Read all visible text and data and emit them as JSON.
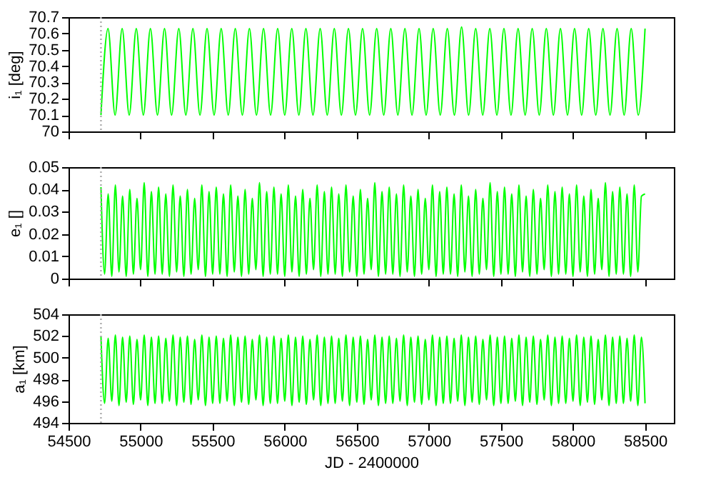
{
  "chart_data": [
    {
      "type": "line",
      "ylabel": "i₁ [deg]",
      "color": "#00ff00",
      "xlim": [
        54500,
        58700
      ],
      "xticks": [
        54500,
        55000,
        55500,
        56000,
        56500,
        57000,
        57500,
        58000,
        58500
      ],
      "ylim": [
        70,
        70.7
      ],
      "yticks": [
        70,
        70.1,
        70.2,
        70.3,
        70.4,
        70.5,
        70.6,
        70.7
      ],
      "tick_labels": "y",
      "ref_lines": [
        {
          "axis": "x",
          "value": 54725,
          "color": "#aaaaaa",
          "line_style": "dotted"
        }
      ],
      "x": [
        54725,
        54774,
        54823,
        54872,
        54921,
        54970,
        55019,
        55068,
        55117,
        55166,
        55215,
        55265,
        55314,
        55363,
        55412,
        55461,
        55510,
        55559,
        55608,
        55657,
        55706,
        55755,
        55804,
        55853,
        55902,
        55951,
        56000,
        56049,
        56098,
        56147,
        56196,
        56246,
        56295,
        56344,
        56393,
        56442,
        56491,
        56540,
        56589,
        56638,
        56687,
        56736,
        56785,
        56834,
        56883,
        56932,
        56981,
        57030,
        57079,
        57128,
        57177,
        57227,
        57276,
        57325,
        57374,
        57423,
        57472,
        57521,
        57570,
        57619,
        57668,
        57717,
        57766,
        57815,
        57864,
        57913,
        57962,
        58011,
        58060,
        58109,
        58158,
        58208,
        58257,
        58306,
        58355,
        58404,
        58453,
        58500
      ],
      "values": [
        70.1,
        70.63,
        70.1,
        70.63,
        70.1,
        70.63,
        70.1,
        70.63,
        70.1,
        70.63,
        70.1,
        70.63,
        70.1,
        70.63,
        70.1,
        70.63,
        70.1,
        70.63,
        70.1,
        70.63,
        70.1,
        70.63,
        70.1,
        70.63,
        70.1,
        70.63,
        70.1,
        70.63,
        70.1,
        70.63,
        70.1,
        70.63,
        70.1,
        70.63,
        70.1,
        70.63,
        70.1,
        70.63,
        70.1,
        70.63,
        70.1,
        70.63,
        70.1,
        70.63,
        70.1,
        70.63,
        70.1,
        70.63,
        70.1,
        70.63,
        70.1,
        70.64,
        70.1,
        70.63,
        70.1,
        70.63,
        70.1,
        70.63,
        70.1,
        70.63,
        70.1,
        70.63,
        70.1,
        70.63,
        70.1,
        70.63,
        70.1,
        70.63,
        70.1,
        70.63,
        70.1,
        70.63,
        70.1,
        70.63,
        70.1,
        70.63,
        70.1,
        70.63
      ]
    },
    {
      "type": "line",
      "ylabel": "e₁ []",
      "color": "#00ff00",
      "xlim": [
        54500,
        58700
      ],
      "xticks": [
        54500,
        55000,
        55500,
        56000,
        56500,
        57000,
        57500,
        58000,
        58500
      ],
      "ylim": [
        0,
        0.05
      ],
      "yticks": [
        0,
        0.01,
        0.02,
        0.03,
        0.04,
        0.05
      ],
      "tick_labels": "y",
      "ref_lines": [
        {
          "axis": "x",
          "value": 54725,
          "color": "#aaaaaa",
          "line_style": "dotted"
        }
      ],
      "x": [
        54725,
        54750,
        54775,
        54800,
        54825,
        54850,
        54875,
        54900,
        54925,
        54950,
        54975,
        55000,
        55025,
        55050,
        55075,
        55100,
        55125,
        55150,
        55175,
        55200,
        55225,
        55250,
        55275,
        55300,
        55325,
        55350,
        55375,
        55400,
        55425,
        55450,
        55475,
        55500,
        55525,
        55550,
        55575,
        55600,
        55625,
        55650,
        55675,
        55700,
        55725,
        55750,
        55775,
        55800,
        55825,
        55850,
        55875,
        55900,
        55925,
        55950,
        55975,
        56000,
        56025,
        56050,
        56075,
        56100,
        56125,
        56150,
        56175,
        56200,
        56225,
        56250,
        56275,
        56300,
        56325,
        56350,
        56375,
        56400,
        56425,
        56450,
        56475,
        56500,
        56525,
        56550,
        56575,
        56600,
        56625,
        56650,
        56675,
        56700,
        56725,
        56750,
        56775,
        56800,
        56825,
        56850,
        56875,
        56900,
        56925,
        56950,
        56975,
        57000,
        57025,
        57050,
        57075,
        57100,
        57125,
        57150,
        57175,
        57200,
        57225,
        57250,
        57275,
        57300,
        57325,
        57350,
        57375,
        57400,
        57425,
        57450,
        57475,
        57500,
        57525,
        57550,
        57575,
        57600,
        57625,
        57650,
        57675,
        57700,
        57725,
        57750,
        57775,
        57800,
        57825,
        57850,
        57875,
        57900,
        57925,
        57950,
        57975,
        58000,
        58025,
        58050,
        58075,
        58100,
        58125,
        58150,
        58175,
        58200,
        58225,
        58250,
        58275,
        58300,
        58325,
        58350,
        58375,
        58400,
        58425,
        58450,
        58475,
        58500
      ],
      "values": [
        0.041,
        0.002,
        0.038,
        0.001,
        0.042,
        0.003,
        0.037,
        0.001,
        0.04,
        0.002,
        0.036,
        0.004,
        0.043,
        0.001,
        0.039,
        0.002,
        0.041,
        0.002,
        0.038,
        0.001,
        0.042,
        0.003,
        0.037,
        0.001,
        0.04,
        0.002,
        0.036,
        0.004,
        0.042,
        0.001,
        0.039,
        0.002,
        0.041,
        0.002,
        0.038,
        0.001,
        0.042,
        0.003,
        0.037,
        0.001,
        0.04,
        0.002,
        0.036,
        0.004,
        0.043,
        0.001,
        0.039,
        0.002,
        0.041,
        0.002,
        0.038,
        0.001,
        0.042,
        0.003,
        0.037,
        0.001,
        0.04,
        0.002,
        0.036,
        0.004,
        0.042,
        0.001,
        0.039,
        0.002,
        0.041,
        0.002,
        0.038,
        0.001,
        0.042,
        0.003,
        0.037,
        0.001,
        0.04,
        0.002,
        0.036,
        0.004,
        0.043,
        0.001,
        0.039,
        0.002,
        0.041,
        0.002,
        0.038,
        0.001,
        0.042,
        0.003,
        0.037,
        0.001,
        0.04,
        0.002,
        0.036,
        0.004,
        0.042,
        0.001,
        0.039,
        0.002,
        0.041,
        0.002,
        0.038,
        0.001,
        0.042,
        0.003,
        0.037,
        0.001,
        0.04,
        0.002,
        0.036,
        0.004,
        0.043,
        0.001,
        0.039,
        0.002,
        0.041,
        0.002,
        0.038,
        0.001,
        0.042,
        0.003,
        0.037,
        0.001,
        0.04,
        0.002,
        0.036,
        0.004,
        0.042,
        0.001,
        0.039,
        0.002,
        0.041,
        0.002,
        0.038,
        0.001,
        0.042,
        0.003,
        0.037,
        0.001,
        0.04,
        0.002,
        0.036,
        0.004,
        0.043,
        0.001,
        0.039,
        0.002,
        0.041,
        0.002,
        0.038,
        0.001,
        0.042,
        0.003,
        0.037,
        0.038
      ]
    },
    {
      "type": "line",
      "ylabel": "a₁ [km]",
      "xlabel": "JD - 2400000",
      "color": "#00ff00",
      "xlim": [
        54500,
        58700
      ],
      "xticks": [
        54500,
        55000,
        55500,
        56000,
        56500,
        57000,
        57500,
        58000,
        58500
      ],
      "ylim": [
        494,
        504
      ],
      "yticks": [
        494,
        496,
        498,
        500,
        502,
        504
      ],
      "ref_lines": [
        {
          "axis": "x",
          "value": 54725,
          "color": "#aaaaaa",
          "line_style": "dotted"
        }
      ],
      "x": [
        54725,
        54750,
        54775,
        54800,
        54825,
        54850,
        54875,
        54900,
        54925,
        54950,
        54975,
        55000,
        55025,
        55050,
        55075,
        55100,
        55125,
        55150,
        55175,
        55200,
        55225,
        55250,
        55275,
        55300,
        55325,
        55350,
        55375,
        55400,
        55425,
        55450,
        55475,
        55500,
        55525,
        55550,
        55575,
        55600,
        55625,
        55650,
        55675,
        55700,
        55725,
        55750,
        55775,
        55800,
        55825,
        55850,
        55875,
        55900,
        55925,
        55950,
        55975,
        56000,
        56025,
        56050,
        56075,
        56100,
        56125,
        56150,
        56175,
        56200,
        56225,
        56250,
        56275,
        56300,
        56325,
        56350,
        56375,
        56400,
        56425,
        56450,
        56475,
        56500,
        56525,
        56550,
        56575,
        56600,
        56625,
        56650,
        56675,
        56700,
        56725,
        56750,
        56775,
        56800,
        56825,
        56850,
        56875,
        56900,
        56925,
        56950,
        56975,
        57000,
        57025,
        57050,
        57075,
        57100,
        57125,
        57150,
        57175,
        57200,
        57225,
        57250,
        57275,
        57300,
        57325,
        57350,
        57375,
        57400,
        57425,
        57450,
        57475,
        57500,
        57525,
        57550,
        57575,
        57600,
        57625,
        57650,
        57675,
        57700,
        57725,
        57750,
        57775,
        57800,
        57825,
        57850,
        57875,
        57900,
        57925,
        57950,
        57975,
        58000,
        58025,
        58050,
        58075,
        58100,
        58125,
        58150,
        58175,
        58200,
        58225,
        58250,
        58275,
        58300,
        58325,
        58350,
        58375,
        58400,
        58425,
        58450,
        58475,
        58500
      ],
      "values": [
        502,
        495.8,
        501.8,
        496,
        502.1,
        495.6,
        501.9,
        495.9,
        502,
        495.7,
        501.7,
        496.1,
        502.1,
        495.6,
        501.9,
        495.8,
        502,
        495.8,
        501.8,
        496,
        502.1,
        495.6,
        501.9,
        495.9,
        502,
        495.7,
        501.7,
        496.1,
        502.1,
        495.6,
        501.9,
        495.8,
        502,
        495.8,
        501.8,
        496,
        502.1,
        495.6,
        501.9,
        495.9,
        502,
        495.7,
        501.7,
        496.1,
        502.1,
        495.6,
        501.9,
        495.8,
        502,
        495.8,
        501.8,
        496,
        502.1,
        495.6,
        501.9,
        495.9,
        502,
        495.7,
        501.7,
        496.1,
        502.1,
        495.6,
        501.9,
        495.8,
        502,
        495.8,
        501.8,
        496,
        502.1,
        495.6,
        501.9,
        495.9,
        502,
        495.7,
        501.7,
        496.1,
        502.1,
        495.6,
        501.9,
        495.8,
        502,
        495.8,
        501.8,
        496,
        502.1,
        495.6,
        501.9,
        495.9,
        502,
        495.7,
        501.7,
        496.1,
        502.1,
        495.6,
        501.9,
        495.8,
        502,
        495.8,
        501.8,
        496,
        502.1,
        495.6,
        501.9,
        495.9,
        502,
        495.7,
        501.7,
        496.1,
        502.1,
        495.6,
        501.9,
        495.8,
        502,
        495.8,
        501.8,
        496,
        502.1,
        495.6,
        501.9,
        495.9,
        502,
        495.7,
        501.7,
        496.1,
        502.1,
        495.6,
        501.9,
        495.8,
        502,
        495.8,
        501.8,
        496,
        502.1,
        495.6,
        501.9,
        495.9,
        502,
        495.7,
        501.7,
        496.1,
        502.1,
        495.6,
        501.9,
        495.8,
        502,
        495.8,
        501.8,
        496,
        502.1,
        495.6,
        501.9,
        495.8
      ]
    }
  ]
}
